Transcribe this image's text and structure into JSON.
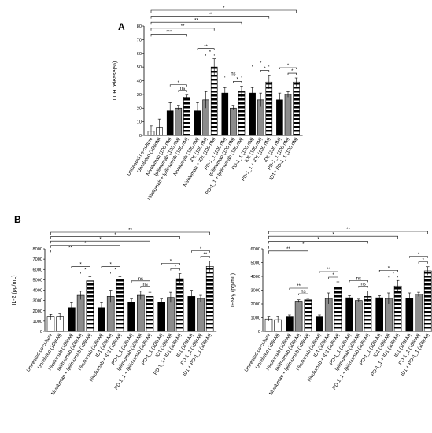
{
  "panels": [
    "A",
    "B"
  ],
  "chart_data": [
    {
      "type": "bar",
      "panel": "A",
      "ylabel": "LDH release(%)",
      "ylim": [
        0,
        80
      ],
      "yticks": [
        0,
        10,
        20,
        30,
        40,
        50,
        60,
        70,
        80
      ],
      "categories": [
        {
          "label": "Untreated co-culture",
          "value": 3,
          "err": 4,
          "style": "white"
        },
        {
          "label": "Unrelated (100nM)",
          "value": 6,
          "err": 6,
          "style": "white"
        },
        {
          "label": "Nivolumab (100 nM)",
          "value": 18,
          "err": 6,
          "style": "black"
        },
        {
          "label": "Ipilimumab (100 nM)",
          "value": 20,
          "err": 1.5,
          "style": "gray"
        },
        {
          "label": "Nivolumab + Ipilimumab (100 nM)",
          "value": 28,
          "err": 1.5,
          "style": "stripe"
        },
        {
          "label": "Nivolumab (100 nM)",
          "value": 18,
          "err": 6,
          "style": "black"
        },
        {
          "label": "ID1 (100 nM)",
          "value": 26,
          "err": 6,
          "style": "gray"
        },
        {
          "label": "Nivolumab + ID1 (100 nM)",
          "value": 50,
          "err": 6,
          "style": "stripe"
        },
        {
          "label": "PD-1_1 (100 nM)",
          "value": 31,
          "err": 4,
          "style": "black"
        },
        {
          "label": "Ipilimumab (100 nM)",
          "value": 20,
          "err": 1.5,
          "style": "gray"
        },
        {
          "label": "PD-1_1 + Ipilimumab (100 nM)",
          "value": 32,
          "err": 4,
          "style": "stripe"
        },
        {
          "label": "PD-1_1 (100 nM)",
          "value": 31,
          "err": 4,
          "style": "black"
        },
        {
          "label": "ID1 (100 nM)",
          "value": 26,
          "err": 5,
          "style": "gray"
        },
        {
          "label": "PD-1_1 + ID1 (100 nM)",
          "value": 39,
          "err": 5,
          "style": "stripe"
        },
        {
          "label": "ID1 (100 nM)",
          "value": 26,
          "err": 5,
          "style": "black"
        },
        {
          "label": "PD-1_1 (100 nM)",
          "value": 30,
          "err": 2,
          "style": "gray"
        },
        {
          "label": "ID1+ PD-1_1 (100 nM)",
          "value": 39,
          "err": 3,
          "style": "stripe"
        }
      ],
      "significance": [
        {
          "from": 0,
          "to": 16,
          "label": "*"
        },
        {
          "from": 0,
          "to": 13,
          "label": "**"
        },
        {
          "from": 0,
          "to": 10,
          "label": "**"
        },
        {
          "from": 0,
          "to": 7,
          "label": "**"
        },
        {
          "from": 0,
          "to": 4,
          "label": "***"
        },
        {
          "from": 5,
          "to": 7,
          "label": "**"
        },
        {
          "from": 6,
          "to": 7,
          "label": "*"
        },
        {
          "from": 2,
          "to": 4,
          "label": "*"
        },
        {
          "from": 3,
          "to": 4,
          "label": "ns"
        },
        {
          "from": 8,
          "to": 10,
          "label": "ns"
        },
        {
          "from": 9,
          "to": 10,
          "label": "*"
        },
        {
          "from": 11,
          "to": 13,
          "label": "*"
        },
        {
          "from": 12,
          "to": 13,
          "label": "*"
        },
        {
          "from": 14,
          "to": 16,
          "label": "*"
        },
        {
          "from": 15,
          "to": 16,
          "label": "*"
        }
      ]
    },
    {
      "type": "bar",
      "panel": "B",
      "ylabel": "IL-2 (pg/mL)",
      "ylim": [
        0,
        8000
      ],
      "yticks": [
        0,
        1000,
        2000,
        3000,
        4000,
        5000,
        6000,
        7000,
        8000
      ],
      "categories": [
        {
          "label": "Untreated co-culture",
          "value": 1400,
          "err": 250,
          "style": "white"
        },
        {
          "label": "Unrelated (100nM)",
          "value": 1400,
          "err": 300,
          "style": "white"
        },
        {
          "label": "Nivolumab (100nM)",
          "value": 2300,
          "err": 500,
          "style": "black"
        },
        {
          "label": "Ipilimumab (100nM)",
          "value": 3500,
          "err": 400,
          "style": "gray"
        },
        {
          "label": "Nivolumab + Ipilimumab (100nM)",
          "value": 4900,
          "err": 400,
          "style": "stripe"
        },
        {
          "label": "Nivolumab (100nM)",
          "value": 2300,
          "err": 500,
          "style": "black"
        },
        {
          "label": "ID1 (100nM)",
          "value": 3400,
          "err": 600,
          "style": "gray"
        },
        {
          "label": "Nivolumab + ID1 (100nM)",
          "value": 5000,
          "err": 300,
          "style": "stripe"
        },
        {
          "label": "PD-1_1 (100nM)",
          "value": 2800,
          "err": 350,
          "style": "black"
        },
        {
          "label": "Ipilimumab (100nM)",
          "value": 3500,
          "err": 400,
          "style": "gray"
        },
        {
          "label": "PD-1_1 + Ipilimumab (100nM)",
          "value": 3400,
          "err": 400,
          "style": "stripe"
        },
        {
          "label": "PD-1_1 (100nM)",
          "value": 2800,
          "err": 350,
          "style": "black"
        },
        {
          "label": "ID1 (100nM)",
          "value": 3300,
          "err": 500,
          "style": "gray"
        },
        {
          "label": "PD-1_1+ ID1 (100nM)",
          "value": 5100,
          "err": 500,
          "style": "stripe"
        },
        {
          "label": "ID1 (100nM)",
          "value": 3400,
          "err": 600,
          "style": "black"
        },
        {
          "label": "PD-1_1 (100nM)",
          "value": 3200,
          "err": 300,
          "style": "gray"
        },
        {
          "label": "ID1 + PD-1_1 (100nM)",
          "value": 6300,
          "err": 500,
          "style": "stripe"
        }
      ],
      "significance": [
        {
          "from": 0,
          "to": 16,
          "label": "**"
        },
        {
          "from": 0,
          "to": 13,
          "label": "*"
        },
        {
          "from": 0,
          "to": 10,
          "label": "*"
        },
        {
          "from": 0,
          "to": 7,
          "label": "*"
        },
        {
          "from": 0,
          "to": 4,
          "label": "**"
        },
        {
          "from": 2,
          "to": 4,
          "label": "*"
        },
        {
          "from": 3,
          "to": 4,
          "label": "*"
        },
        {
          "from": 5,
          "to": 7,
          "label": "*"
        },
        {
          "from": 6,
          "to": 7,
          "label": "*"
        },
        {
          "from": 8,
          "to": 10,
          "label": "ns"
        },
        {
          "from": 9,
          "to": 10,
          "label": "ns"
        },
        {
          "from": 11,
          "to": 13,
          "label": "*"
        },
        {
          "from": 12,
          "to": 13,
          "label": "*"
        },
        {
          "from": 14,
          "to": 16,
          "label": "*"
        },
        {
          "from": 15,
          "to": 16,
          "label": "**"
        }
      ]
    },
    {
      "type": "bar",
      "panel": "B",
      "ylabel": "IFN-γ (pg/mL)",
      "ylim": [
        0,
        6000
      ],
      "yticks": [
        0,
        1000,
        2000,
        3000,
        4000,
        5000,
        6000
      ],
      "categories": [
        {
          "label": "Untreated co-culture",
          "value": 900,
          "err": 150,
          "style": "white"
        },
        {
          "label": "Unrelated (100nM)",
          "value": 850,
          "err": 200,
          "style": "white"
        },
        {
          "label": "Nivolumab (100nM)",
          "value": 1050,
          "err": 150,
          "style": "black"
        },
        {
          "label": "Ipilimumab (100nM)",
          "value": 2200,
          "err": 100,
          "style": "gray"
        },
        {
          "label": "Nivolumab + Ipilimumab (100nM)",
          "value": 2300,
          "err": 100,
          "style": "stripe"
        },
        {
          "label": "Nivolumab (100nM)",
          "value": 1050,
          "err": 150,
          "style": "black"
        },
        {
          "label": "ID1 (100nM)",
          "value": 2400,
          "err": 400,
          "style": "gray"
        },
        {
          "label": "Nivolumab + ID1 (100nM)",
          "value": 3200,
          "err": 400,
          "style": "stripe"
        },
        {
          "label": "PD-1_1 (100nM)",
          "value": 2450,
          "err": 150,
          "style": "black"
        },
        {
          "label": "Ipilimumab (100nM)",
          "value": 2250,
          "err": 100,
          "style": "gray"
        },
        {
          "label": "PD-1_1 + Ipilimumab (100nM)",
          "value": 2550,
          "err": 400,
          "style": "stripe"
        },
        {
          "label": "PD-1_1 (100nM)",
          "value": 2450,
          "err": 150,
          "style": "black"
        },
        {
          "label": "ID1 (100nM)",
          "value": 2400,
          "err": 400,
          "style": "gray"
        },
        {
          "label": "PD-1_1 + ID1 (100nM)",
          "value": 3300,
          "err": 400,
          "style": "stripe"
        },
        {
          "label": "ID1 (100nM)",
          "value": 2400,
          "err": 400,
          "style": "black"
        },
        {
          "label": "PD-1_1 (100nM)",
          "value": 2700,
          "err": 150,
          "style": "gray"
        },
        {
          "label": "ID1 + PD-1_1 (100nM)",
          "value": 4400,
          "err": 300,
          "style": "stripe"
        }
      ],
      "significance": [
        {
          "from": 0,
          "to": 16,
          "label": "**"
        },
        {
          "from": 0,
          "to": 13,
          "label": "*"
        },
        {
          "from": 0,
          "to": 10,
          "label": "*"
        },
        {
          "from": 0,
          "to": 7,
          "label": "*"
        },
        {
          "from": 0,
          "to": 4,
          "label": "**"
        },
        {
          "from": 2,
          "to": 4,
          "label": "**"
        },
        {
          "from": 3,
          "to": 4,
          "label": "ns"
        },
        {
          "from": 5,
          "to": 7,
          "label": "**"
        },
        {
          "from": 6,
          "to": 7,
          "label": "*"
        },
        {
          "from": 8,
          "to": 10,
          "label": "ns"
        },
        {
          "from": 9,
          "to": 10,
          "label": "ns"
        },
        {
          "from": 11,
          "to": 13,
          "label": "*"
        },
        {
          "from": 12,
          "to": 13,
          "label": "*"
        },
        {
          "from": 14,
          "to": 16,
          "label": "*"
        },
        {
          "from": 15,
          "to": 16,
          "label": "*"
        }
      ]
    }
  ],
  "colors": {
    "black": "#000000",
    "gray": "#8c8c8c",
    "white": "#ffffff",
    "stripe_dark": "#000000",
    "stripe_light": "#ffffff"
  }
}
